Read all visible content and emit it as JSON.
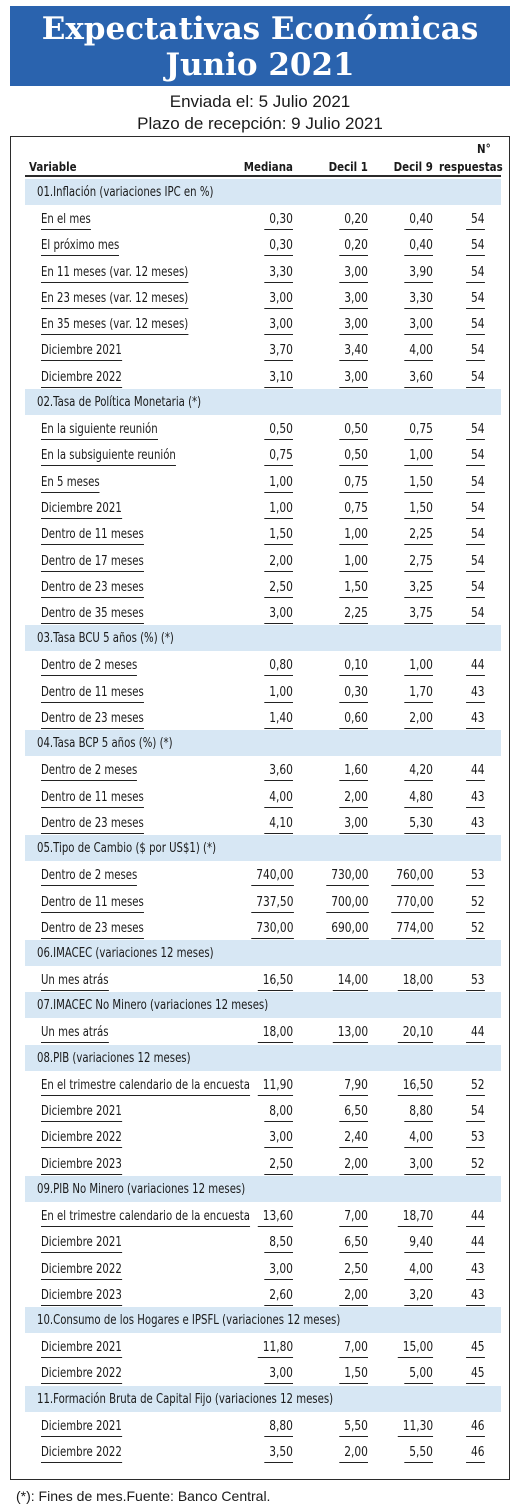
{
  "title": {
    "line1": "Expectativas Económicas",
    "line2": "Junio 2021"
  },
  "subtitle": {
    "sent": "Enviada el: 5 Julio 2021",
    "deadline": "Plazo de recepción: 9 Julio 2021"
  },
  "columns": {
    "variable": "Variable",
    "median": "Mediana",
    "d1": "Decil 1",
    "d9": "Decil 9",
    "n1": "N°",
    "n2": "respuestas"
  },
  "sections": [
    {
      "title": "01.Inflación (variaciones IPC en %)",
      "rows": [
        [
          "En el mes",
          "0,30",
          "0,20",
          "0,40",
          "54"
        ],
        [
          "El próximo mes",
          "0,30",
          "0,20",
          "0,40",
          "54"
        ],
        [
          "En 11 meses (var. 12 meses)",
          "3,30",
          "3,00",
          "3,90",
          "54"
        ],
        [
          "En 23 meses (var. 12 meses)",
          "3,00",
          "3,00",
          "3,30",
          "54"
        ],
        [
          "En 35 meses (var. 12 meses)",
          "3,00",
          "3,00",
          "3,00",
          "54"
        ],
        [
          "Diciembre 2021",
          "3,70",
          "3,40",
          "4,00",
          "54"
        ],
        [
          "Diciembre 2022",
          "3,10",
          "3,00",
          "3,60",
          "54"
        ]
      ]
    },
    {
      "title": "02.Tasa de Política Monetaria  (*)",
      "rows": [
        [
          "En la siguiente reunión",
          "0,50",
          "0,50",
          "0,75",
          "54"
        ],
        [
          "En la subsiguiente reunión",
          "0,75",
          "0,50",
          "1,00",
          "54"
        ],
        [
          "En 5 meses",
          "1,00",
          "0,75",
          "1,50",
          "54"
        ],
        [
          "Diciembre 2021",
          "1,00",
          "0,75",
          "1,50",
          "54"
        ],
        [
          "Dentro de 11 meses",
          "1,50",
          "1,00",
          "2,25",
          "54"
        ],
        [
          "Dentro de 17 meses",
          "2,00",
          "1,00",
          "2,75",
          "54"
        ],
        [
          "Dentro de 23 meses",
          "2,50",
          "1,50",
          "3,25",
          "54"
        ],
        [
          "Dentro de 35 meses",
          "3,00",
          "2,25",
          "3,75",
          "54"
        ]
      ]
    },
    {
      "title": "03.Tasa BCU 5 años  (%)  (*)",
      "rows": [
        [
          "Dentro de 2 meses",
          "0,80",
          "0,10",
          "1,00",
          "44"
        ],
        [
          "Dentro de 11 meses",
          "1,00",
          "0,30",
          "1,70",
          "43"
        ],
        [
          "Dentro de 23 meses",
          "1,40",
          "0,60",
          "2,00",
          "43"
        ]
      ]
    },
    {
      "title": "04.Tasa BCP 5 años  (%) (*)",
      "rows": [
        [
          "Dentro de 2 meses",
          "3,60",
          "1,60",
          "4,20",
          "44"
        ],
        [
          "Dentro de 11 meses",
          "4,00",
          "2,00",
          "4,80",
          "43"
        ],
        [
          "Dentro de 23 meses",
          "4,10",
          "3,00",
          "5,30",
          "43"
        ]
      ]
    },
    {
      "title": "05.Tipo de Cambio  ($ por US$1) (*)",
      "rows": [
        [
          "Dentro de 2 meses",
          "740,00",
          "730,00",
          "760,00",
          "53"
        ],
        [
          "Dentro de 11 meses",
          "737,50",
          "700,00",
          "770,00",
          "52"
        ],
        [
          "Dentro de 23 meses",
          "730,00",
          "690,00",
          "774,00",
          "52"
        ]
      ]
    },
    {
      "title": "06.IMACEC  (variaciones 12 meses)",
      "rows": [
        [
          "Un mes atrás",
          "16,50",
          "14,00",
          "18,00",
          "53"
        ]
      ]
    },
    {
      "title": "07.IMACEC No Minero (variaciones 12 meses)",
      "rows": [
        [
          "Un mes atrás",
          "18,00",
          "13,00",
          "20,10",
          "44"
        ]
      ]
    },
    {
      "title": "08.PIB  (variaciones 12 meses)",
      "rows": [
        [
          "En el trimestre calendario de la encuesta",
          "11,90",
          "7,90",
          "16,50",
          "52"
        ],
        [
          "Diciembre 2021",
          "8,00",
          "6,50",
          "8,80",
          "54"
        ],
        [
          "Diciembre 2022",
          "3,00",
          "2,40",
          "4,00",
          "53"
        ],
        [
          "Diciembre 2023",
          "2,50",
          "2,00",
          "3,00",
          "52"
        ]
      ]
    },
    {
      "title": "09.PIB No Minero (variaciones 12 meses)",
      "rows": [
        [
          "En el trimestre calendario de la encuesta",
          "13,60",
          "7,00",
          "18,70",
          "44"
        ],
        [
          "Diciembre 2021",
          "8,50",
          "6,50",
          "9,40",
          "44"
        ],
        [
          "Diciembre 2022",
          "3,00",
          "2,50",
          "4,00",
          "43"
        ],
        [
          "Diciembre 2023",
          "2,60",
          "2,00",
          "3,20",
          "43"
        ]
      ]
    },
    {
      "title": "10.Consumo de los Hogares e IPSFL  (variaciones 12 meses)",
      "rows": [
        [
          "Diciembre 2021",
          "11,80",
          "7,00",
          "15,00",
          "45"
        ],
        [
          "Diciembre 2022",
          "3,00",
          "1,50",
          "5,00",
          "45"
        ]
      ]
    },
    {
      "title": "11.Formación Bruta de Capital Fijo  (variaciones 12 meses)",
      "rows": [
        [
          "Diciembre 2021",
          "8,80",
          "5,50",
          "11,30",
          "46"
        ],
        [
          "Diciembre 2022",
          "3,50",
          "2,00",
          "5,50",
          "46"
        ]
      ]
    }
  ],
  "footnote": "(*): Fines de mes.Fuente: Banco Central."
}
